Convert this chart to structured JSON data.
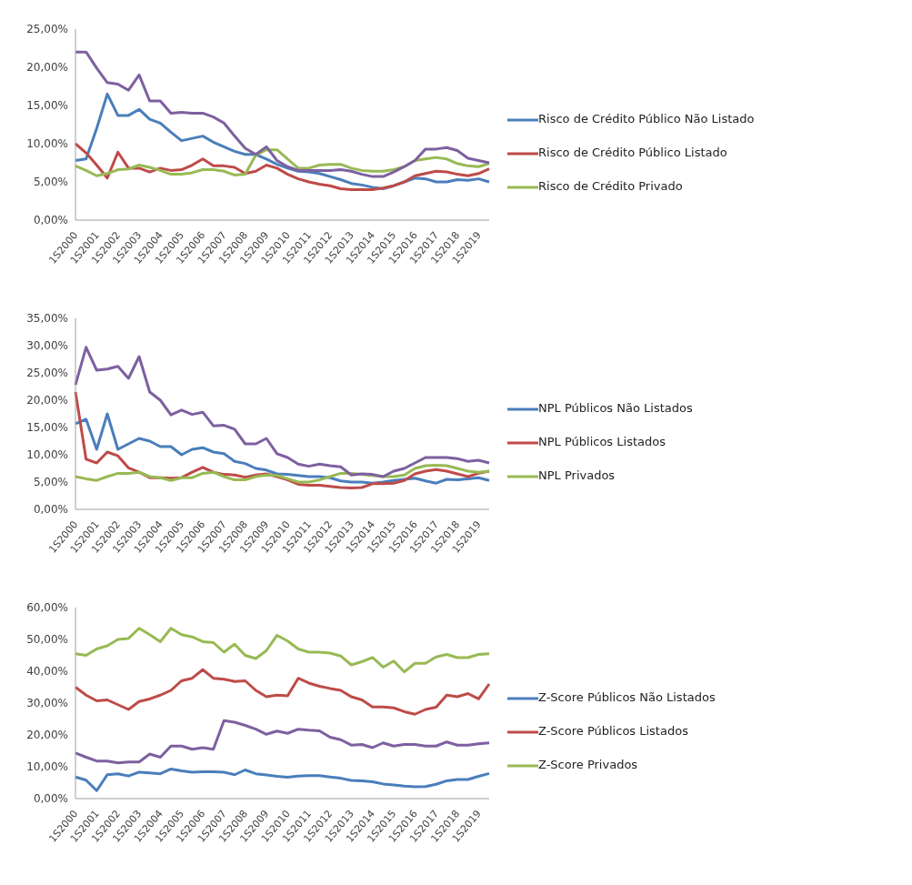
{
  "chart_data": [
    {
      "type": "line",
      "legend": "right",
      "marker": "none",
      "categories": [
        "1S2000",
        null,
        "1S2001",
        null,
        "1S2002",
        null,
        "1S2003",
        null,
        "1S2004",
        null,
        "1S2005",
        null,
        "1S2006",
        null,
        "1S2007",
        null,
        "1S2008",
        null,
        "1S2009",
        null,
        "1S2010",
        null,
        "1S2011",
        null,
        "1S2012",
        null,
        "1S2013",
        null,
        "1S2014",
        null,
        "1S2015",
        null,
        "1S2016",
        null,
        "1S2017",
        null,
        "1S2018",
        null,
        "1S2019",
        null
      ],
      "ylim": [
        0,
        25
      ],
      "yticks": [
        {
          "value": 0,
          "label": "0,00%"
        },
        {
          "value": 5,
          "label": "5,00%"
        },
        {
          "value": 10,
          "label": "10,00%"
        },
        {
          "value": 15,
          "label": "15,00%"
        },
        {
          "value": 20,
          "label": "20,00%"
        },
        {
          "value": 25,
          "label": "25,00%"
        }
      ],
      "series": [
        {
          "name": "Risco de Crédito Público Não Listado",
          "color": "#4a7ebb",
          "values": [
            7.8,
            8.0,
            12.0,
            16.5,
            13.7,
            13.7,
            14.5,
            13.2,
            12.7,
            11.5,
            10.4,
            10.7,
            11.0,
            10.2,
            9.6,
            9.0,
            8.6,
            8.6,
            8.0,
            7.3,
            6.8,
            6.4,
            6.3,
            6.1,
            5.7,
            5.3,
            4.8,
            4.6,
            4.3,
            4.1,
            4.5,
            5.0,
            5.5,
            5.4,
            5.0,
            5.0,
            5.3,
            5.2,
            5.4,
            5.0
          ]
        },
        {
          "name": "Risco de Crédito Público Listado",
          "color": "#be4b48",
          "values": [
            10.0,
            8.8,
            7.2,
            5.5,
            8.9,
            6.8,
            6.8,
            6.3,
            6.8,
            6.5,
            6.6,
            7.2,
            8.0,
            7.1,
            7.1,
            6.9,
            6.1,
            6.4,
            7.2,
            6.8,
            6.0,
            5.4,
            5.0,
            4.7,
            4.5,
            4.1,
            4.0,
            4.0,
            4.0,
            4.2,
            4.5,
            5.0,
            5.8,
            6.1,
            6.4,
            6.3,
            6.0,
            5.8,
            6.1,
            6.7
          ]
        },
        {
          "name": "Risco de Crédito Privado",
          "color": "#98b954",
          "values": [
            7.1,
            6.5,
            5.8,
            6.1,
            6.6,
            6.7,
            7.2,
            6.9,
            6.5,
            6.0,
            6.0,
            6.2,
            6.6,
            6.6,
            6.4,
            5.9,
            6.0,
            8.5,
            9.2,
            9.2,
            8.0,
            6.8,
            6.8,
            7.2,
            7.3,
            7.3,
            6.8,
            6.5,
            6.4,
            6.4,
            6.6,
            7.0,
            7.8,
            8.0,
            8.2,
            8.0,
            7.4,
            7.1,
            7.0,
            7.4
          ]
        },
        {
          "color": "#7d60a0",
          "values": [
            22.0,
            22.0,
            19.9,
            18.0,
            17.8,
            17.0,
            19.0,
            15.6,
            15.6,
            14.0,
            14.1,
            14.0,
            14.0,
            13.5,
            12.7,
            11.0,
            9.4,
            8.6,
            9.6,
            7.8,
            7.0,
            6.5,
            6.5,
            6.5,
            6.5,
            6.6,
            6.4,
            6.0,
            5.7,
            5.7,
            6.3,
            7.0,
            7.8,
            9.3,
            9.3,
            9.5,
            9.1,
            8.1,
            7.8,
            7.5
          ]
        }
      ]
    },
    {
      "type": "line",
      "legend": "right",
      "marker": "none",
      "categories": [
        "1S2000",
        null,
        "1S2001",
        null,
        "1S2002",
        null,
        "1S2003",
        null,
        "1S2004",
        null,
        "1S2005",
        null,
        "1S2006",
        null,
        "1S2007",
        null,
        "1S2008",
        null,
        "1S2009",
        null,
        "1S2010",
        null,
        "1S2011",
        null,
        "1S2012",
        null,
        "1S2013",
        null,
        "1S2014",
        null,
        "1S2015",
        null,
        "1S2016",
        null,
        "1S2017",
        null,
        "1S2018",
        null,
        "1S2019",
        null
      ],
      "ylim": [
        0,
        35
      ],
      "yticks": [
        {
          "value": 0,
          "label": "0,00%"
        },
        {
          "value": 5,
          "label": "5,00%"
        },
        {
          "value": 10,
          "label": "10,00%"
        },
        {
          "value": 15,
          "label": "15,00%"
        },
        {
          "value": 20,
          "label": "20,00%"
        },
        {
          "value": 25,
          "label": "25,00%"
        },
        {
          "value": 30,
          "label": "30,00%"
        },
        {
          "value": 35,
          "label": "35,00%"
        }
      ],
      "series": [
        {
          "name": "NPL Públicos Não Listados",
          "color": "#4a7ebb",
          "values": [
            15.7,
            16.5,
            11.0,
            17.5,
            11.0,
            12.0,
            13.0,
            12.5,
            11.5,
            11.5,
            10.0,
            11.0,
            11.3,
            10.5,
            10.2,
            8.8,
            8.4,
            7.5,
            7.2,
            6.5,
            6.4,
            6.2,
            6.0,
            6.0,
            5.8,
            5.2,
            5.0,
            5.0,
            4.8,
            5.0,
            5.3,
            5.5,
            5.7,
            5.2,
            4.8,
            5.5,
            5.4,
            5.6,
            5.8,
            5.3
          ]
        },
        {
          "name": "NPL Públicos Listados",
          "color": "#be4b48",
          "values": [
            21.5,
            9.2,
            8.5,
            10.5,
            9.8,
            7.6,
            6.8,
            5.8,
            5.8,
            5.7,
            5.8,
            6.8,
            7.7,
            6.8,
            6.4,
            6.3,
            5.9,
            6.3,
            6.5,
            6.0,
            5.4,
            4.6,
            4.4,
            4.4,
            4.2,
            4.0,
            3.9,
            4.0,
            4.7,
            4.7,
            4.8,
            5.3,
            6.5,
            7.0,
            7.3,
            7.0,
            6.5,
            6.0,
            6.6,
            7.0
          ]
        },
        {
          "name": "NPL Privados",
          "color": "#98b954",
          "values": [
            6.0,
            5.6,
            5.3,
            6.0,
            6.6,
            6.6,
            6.8,
            6.0,
            5.8,
            5.3,
            5.8,
            5.8,
            6.6,
            6.8,
            6.0,
            5.4,
            5.4,
            6.0,
            6.3,
            6.2,
            5.6,
            5.0,
            5.0,
            5.4,
            6.0,
            6.6,
            6.6,
            6.4,
            6.2,
            6.0,
            6.0,
            6.3,
            7.5,
            8.0,
            8.1,
            8.0,
            7.5,
            7.0,
            6.8,
            7.0
          ]
        },
        {
          "color": "#7d60a0",
          "values": [
            22.8,
            29.7,
            25.5,
            25.7,
            26.2,
            24.0,
            28.0,
            21.5,
            20.0,
            17.3,
            18.2,
            17.4,
            17.8,
            15.3,
            15.4,
            14.7,
            12.0,
            12.0,
            13.0,
            10.2,
            9.5,
            8.3,
            7.9,
            8.3,
            8.0,
            7.8,
            6.3,
            6.5,
            6.4,
            6.0,
            7.0,
            7.5,
            8.5,
            9.5,
            9.5,
            9.5,
            9.3,
            8.8,
            9.0,
            8.5
          ]
        }
      ]
    },
    {
      "type": "line",
      "legend": "right",
      "marker": "none",
      "categories": [
        "1S2000",
        null,
        "1S2001",
        null,
        "1S2002",
        null,
        "1S2003",
        null,
        "1S2004",
        null,
        "1S2005",
        null,
        "1S2006",
        null,
        "1S2007",
        null,
        "1S2008",
        null,
        "1S2009",
        null,
        "1S2010",
        null,
        "1S2011",
        null,
        "1S2012",
        null,
        "1S2013",
        null,
        "1S2014",
        null,
        "1S2015",
        null,
        "1S2016",
        null,
        "1S2017",
        null,
        "1S2018",
        null,
        "1S2019",
        null
      ],
      "ylim": [
        0,
        60
      ],
      "yticks": [
        {
          "value": 0,
          "label": "0,00%"
        },
        {
          "value": 10,
          "label": "10,00%"
        },
        {
          "value": 20,
          "label": "20,00%"
        },
        {
          "value": 30,
          "label": "30,00%"
        },
        {
          "value": 40,
          "label": "40,00%"
        },
        {
          "value": 50,
          "label": "50,00%"
        },
        {
          "value": 60,
          "label": "60,00%"
        }
      ],
      "series": [
        {
          "name": "Z-Score Públicos Não Listados",
          "color": "#4a7ebb",
          "values": [
            6.8,
            5.8,
            2.5,
            7.5,
            7.8,
            7.1,
            8.3,
            8.1,
            7.8,
            9.3,
            8.7,
            8.3,
            8.4,
            8.4,
            8.3,
            7.5,
            9.0,
            7.8,
            7.4,
            7.0,
            6.7,
            7.1,
            7.2,
            7.2,
            6.8,
            6.4,
            5.7,
            5.6,
            5.3,
            4.6,
            4.3,
            3.9,
            3.7,
            3.8,
            4.5,
            5.6,
            6.0,
            6.0,
            7.0,
            7.9
          ]
        },
        {
          "name": "Z-Score Públicos Listados",
          "color": "#be4b48",
          "values": [
            35.0,
            32.5,
            30.7,
            31.0,
            29.5,
            28.0,
            30.5,
            31.3,
            32.5,
            34.0,
            37.0,
            37.8,
            40.5,
            37.8,
            37.5,
            36.8,
            37.0,
            34.0,
            32.0,
            32.5,
            32.3,
            37.8,
            36.3,
            35.3,
            34.6,
            34.0,
            32.0,
            31.0,
            28.8,
            28.8,
            28.5,
            27.3,
            26.5,
            28.0,
            28.7,
            32.5,
            32.0,
            33.0,
            31.3,
            36.0
          ]
        },
        {
          "name": "Z-Score Privados",
          "color": "#98b954",
          "values": [
            45.5,
            45.0,
            47.0,
            48.0,
            50.0,
            50.3,
            53.5,
            51.5,
            49.3,
            53.5,
            51.5,
            50.8,
            49.3,
            49.0,
            46.0,
            48.5,
            45.0,
            44.0,
            46.5,
            51.3,
            49.5,
            47.0,
            46.0,
            46.0,
            45.7,
            44.8,
            42.0,
            43.0,
            44.3,
            41.3,
            43.2,
            39.8,
            42.5,
            42.5,
            44.5,
            45.3,
            44.3,
            44.3,
            45.3,
            45.5
          ]
        },
        {
          "color": "#7d60a0",
          "values": [
            14.3,
            13.0,
            11.8,
            11.8,
            11.2,
            11.5,
            11.5,
            14.0,
            13.0,
            16.5,
            16.5,
            15.5,
            16.0,
            15.5,
            24.5,
            24.0,
            23.0,
            21.8,
            20.2,
            21.2,
            20.5,
            21.8,
            21.5,
            21.3,
            19.3,
            18.5,
            16.8,
            17.0,
            16.0,
            17.5,
            16.5,
            17.0,
            17.0,
            16.5,
            16.5,
            17.8,
            16.8,
            16.8,
            17.2,
            17.5
          ]
        }
      ]
    }
  ]
}
